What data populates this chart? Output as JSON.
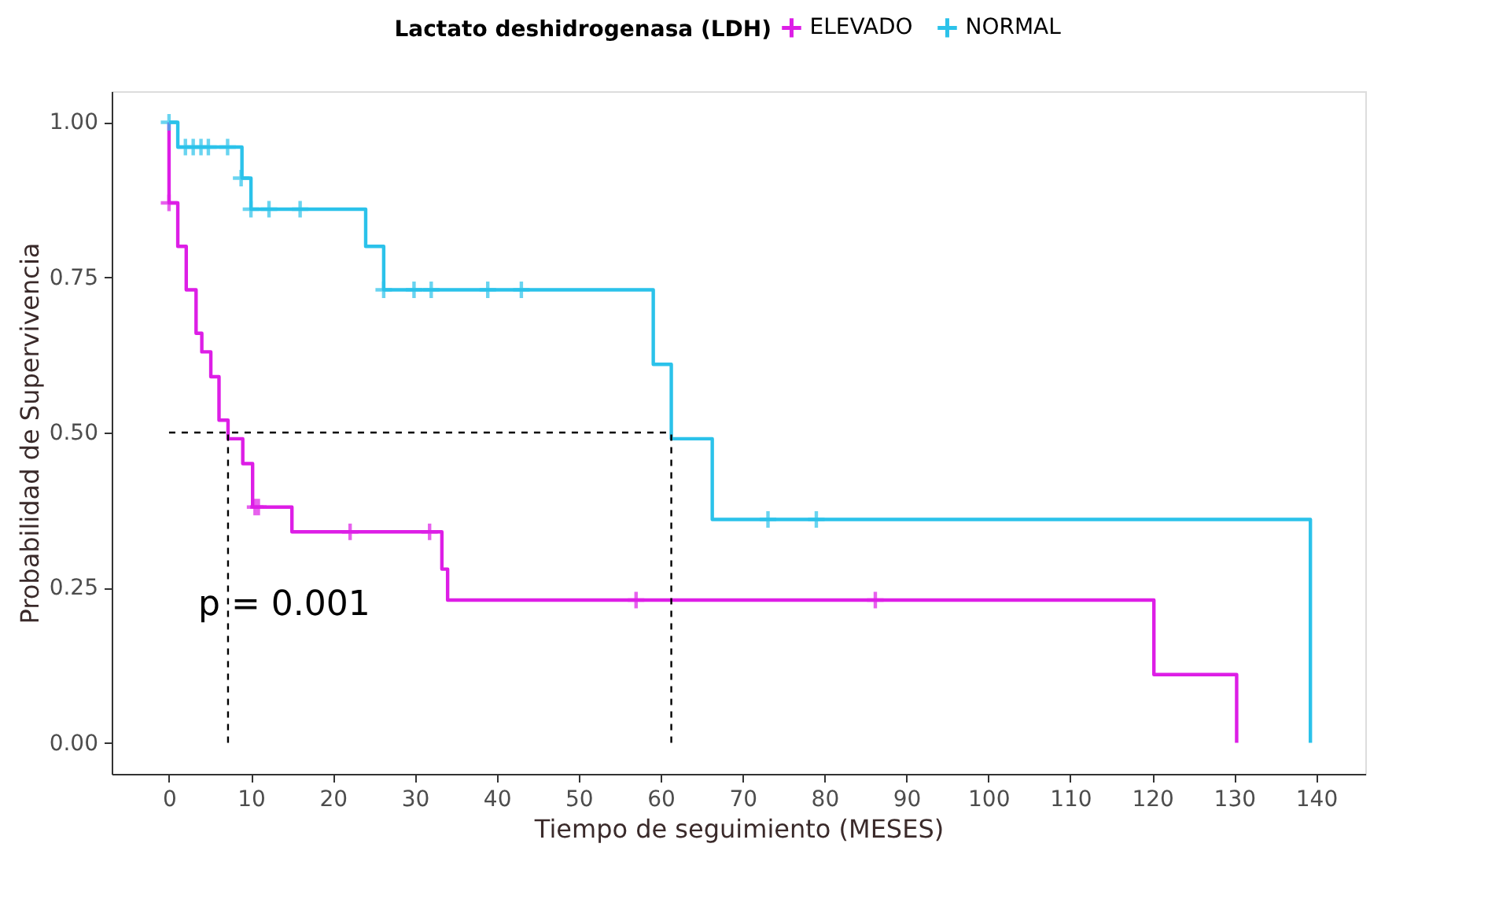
{
  "chart_data": {
    "type": "step",
    "xlabel": "Tiempo de seguimiento (MESES)",
    "ylabel": "Probabilidad de Supervivencia",
    "legend_title": "Lactato deshidrogenasa (LDH)",
    "legend": "top",
    "grid": false,
    "line_style": "solid",
    "xlim": [
      -7,
      146
    ],
    "ylim": [
      -0.05,
      1.05
    ],
    "xticks": [
      0,
      10,
      20,
      30,
      40,
      50,
      60,
      70,
      80,
      90,
      100,
      110,
      120,
      130,
      140
    ],
    "yticks": [
      {
        "value": 0,
        "label": "0.00"
      },
      {
        "value": 0.25,
        "label": "0.25"
      },
      {
        "value": 0.5,
        "label": "0.50"
      },
      {
        "value": 0.75,
        "label": "0.75"
      },
      {
        "value": 1,
        "label": "1.00"
      }
    ],
    "annotations": [
      "p = 0.001"
    ],
    "ref_lines": [
      {
        "axis": "y",
        "value": 0.5,
        "color": "#000000",
        "line_style": "dashed"
      },
      {
        "axis": "x",
        "value": 7.2,
        "color": "#000000",
        "line_style": "dashed"
      },
      {
        "axis": "x",
        "value": 61.3,
        "color": "#000000",
        "line_style": "dashed"
      }
    ],
    "series": [
      {
        "name": "ELEVADO",
        "color": "#dd1ee6",
        "x": [
          0,
          0,
          1.07,
          2.1,
          3.3,
          4.0,
          5.1,
          6.1,
          7.2,
          9.0,
          10.2,
          15.0,
          33.3,
          34.0,
          120.2,
          130.3
        ],
        "values": [
          1.0,
          0.87,
          0.8,
          0.73,
          0.66,
          0.63,
          0.59,
          0.52,
          0.49,
          0.45,
          0.38,
          0.34,
          0.28,
          0.23,
          0.11,
          0
        ]
      },
      {
        "name": "NORMAL",
        "color": "#2bc2ea",
        "x": [
          0,
          1.07,
          8.9,
          10.0,
          24.0,
          26.2,
          59.1,
          61.3,
          66.3,
          139.3
        ],
        "values": [
          1.0,
          0.96,
          0.91,
          0.86,
          0.8,
          0.73,
          0.61,
          0.49,
          0.36,
          0
        ]
      },
      {
        "type": "scatter",
        "marker": "cross",
        "color": "#dd1ee6",
        "x": [
          0,
          10.5,
          10.9,
          22.1,
          31.8,
          57.0,
          86.2
        ],
        "values": [
          0.87,
          0.38,
          0.38,
          0.34,
          0.34,
          0.23,
          0.23
        ]
      },
      {
        "type": "scatter",
        "marker": "cross",
        "color": "#2bc2ea",
        "x": [
          0,
          2.0,
          2.95,
          3.9,
          4.8,
          7.15,
          8.8,
          10.0,
          12.2,
          16.0,
          26.2,
          29.9,
          32.0,
          38.9,
          43.0,
          73.1,
          79.0
        ],
        "values": [
          1.0,
          0.96,
          0.96,
          0.96,
          0.96,
          0.96,
          0.91,
          0.86,
          0.86,
          0.86,
          0.73,
          0.73,
          0.73,
          0.73,
          0.73,
          0.36,
          0.36
        ]
      }
    ]
  }
}
